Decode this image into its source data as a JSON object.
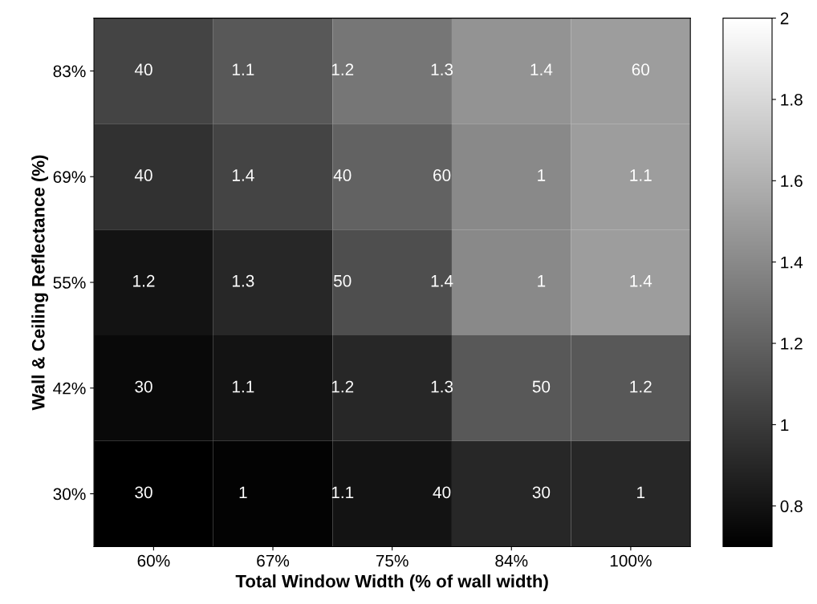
{
  "chart_data": {
    "type": "heatmap",
    "xlabel": "Total Window Width (% of wall width)",
    "ylabel": "Wall & Ceiling Reflectance (%)",
    "categories": [
      "60%",
      "67%",
      "75%",
      "84%",
      "100%"
    ],
    "y_categories": [
      "83%",
      "69%",
      "55%",
      "42%",
      "30%"
    ],
    "cells": [
      [
        1.05,
        1.15,
        1.3,
        1.45,
        1.5
      ],
      [
        0.95,
        1.05,
        1.2,
        1.4,
        1.5
      ],
      [
        0.8,
        0.9,
        1.1,
        1.4,
        1.5
      ],
      [
        0.75,
        0.8,
        0.9,
        1.15,
        1.15
      ],
      [
        0.7,
        0.72,
        0.8,
        0.9,
        0.9
      ]
    ],
    "clim": [
      0.7,
      2
    ],
    "cticks": [
      0.8,
      1,
      1.2,
      1.4,
      1.6,
      1.8,
      2
    ],
    "annotations": [
      "40",
      "1.1",
      "1.2",
      "1.3",
      "1.4",
      "60",
      "40",
      "1.4",
      "40",
      "60",
      "1",
      "1.1",
      "1.2",
      "1.3",
      "50",
      "1.4",
      "1",
      "1.4",
      "30",
      "1.1",
      "1.2",
      "1.3",
      "50",
      "1.2",
      "30",
      "1",
      "1.1",
      "40",
      "30",
      "1"
    ]
  }
}
